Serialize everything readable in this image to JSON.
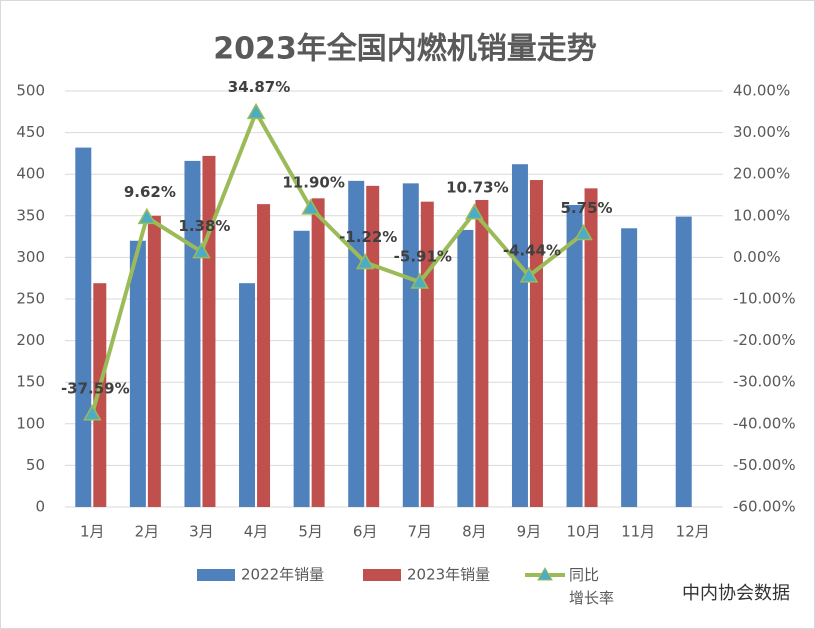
{
  "chart_data": {
    "type": "bar-line",
    "title": "2023年全国内燃机销量走势",
    "categories": [
      "1月",
      "2月",
      "3月",
      "4月",
      "5月",
      "6月",
      "7月",
      "8月",
      "9月",
      "10月",
      "11月",
      "12月"
    ],
    "series": [
      {
        "name": "2022年销量",
        "type": "bar",
        "color": "#4f81bd",
        "values": [
          432,
          320,
          416,
          269,
          332,
          392,
          389,
          333,
          412,
          363,
          335,
          349
        ]
      },
      {
        "name": "2023年销量",
        "type": "bar",
        "color": "#c0504d",
        "values": [
          269,
          350,
          422,
          364,
          371,
          386,
          367,
          369,
          393,
          383,
          null,
          null
        ]
      },
      {
        "name": "同比增长率",
        "type": "line",
        "axis": "y2",
        "color": "#9bbb59",
        "marker_color": "#4bacc6",
        "values": [
          -37.59,
          9.62,
          1.38,
          34.87,
          11.9,
          -1.22,
          -5.91,
          10.73,
          -4.44,
          5.75,
          null,
          null
        ],
        "value_labels": [
          "-37.59%",
          "9.62%",
          "1.38%",
          "34.87%",
          "11.90%",
          "-1.22%",
          "-5.91%",
          "10.73%",
          "-4.44%",
          "5.75%",
          null,
          null
        ]
      }
    ],
    "ylim": [
      0,
      500
    ],
    "yticks": [
      0,
      50,
      100,
      150,
      200,
      250,
      300,
      350,
      400,
      450,
      500
    ],
    "y2lim": [
      -60,
      40
    ],
    "y2ticks": [
      {
        "value": -60,
        "label": "-60.00%"
      },
      {
        "value": -50,
        "label": "-50.00%"
      },
      {
        "value": -40,
        "label": "-40.00%"
      },
      {
        "value": -30,
        "label": "-30.00%"
      },
      {
        "value": -20,
        "label": "-20.00%"
      },
      {
        "value": -10,
        "label": "-10.00%"
      },
      {
        "value": 0,
        "label": "0.00%"
      },
      {
        "value": 10,
        "label": "10.00%"
      },
      {
        "value": 20,
        "label": "20.00%"
      },
      {
        "value": 30,
        "label": "30.00%"
      },
      {
        "value": 40,
        "label": "40.00%"
      }
    ],
    "grid": true,
    "legend": "bottom",
    "watermark": "中内协会数据"
  }
}
